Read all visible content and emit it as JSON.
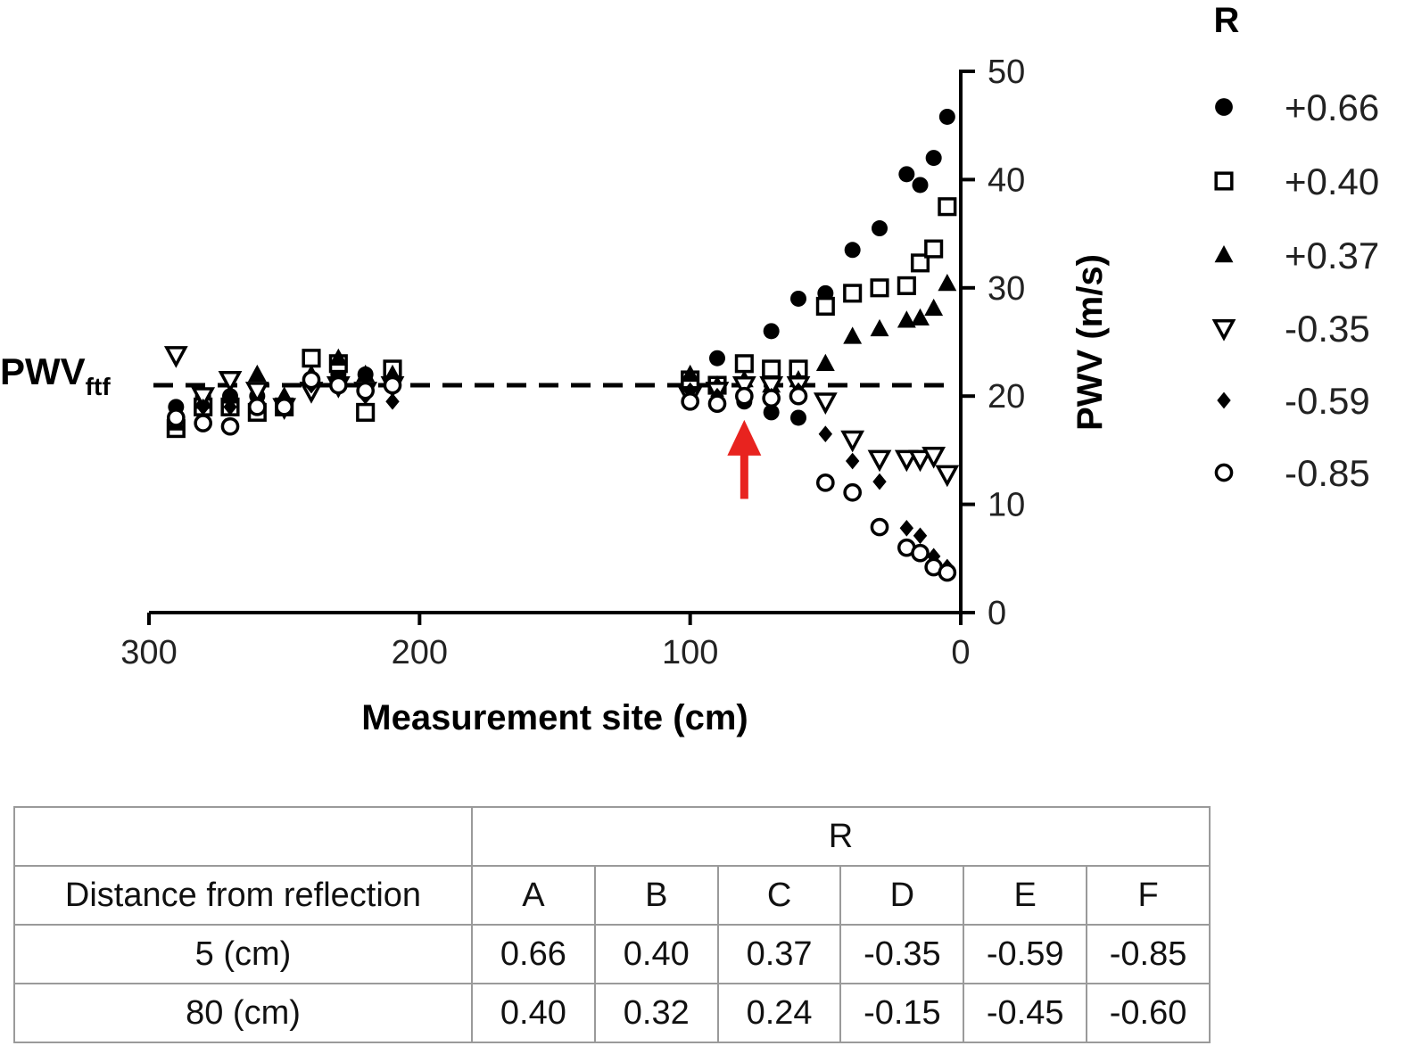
{
  "chart_data": {
    "type": "scatter",
    "xlabel": "Measurement site (cm)",
    "ylabel": "PWV (m/s)",
    "x_reversed": true,
    "xlim": [
      300,
      0
    ],
    "ylim": [
      0,
      50
    ],
    "x_ticks": [
      "300",
      "200",
      "100",
      "0"
    ],
    "y_ticks": [
      "0",
      "10",
      "20",
      "30",
      "40",
      "50"
    ],
    "y_axis_position": "right",
    "grid": false,
    "legend_title": "R",
    "legend_position": "right",
    "reference_line": {
      "label_main": "PWV",
      "label_sub": "ftf",
      "y": 21,
      "style": "dashed"
    },
    "annotation": {
      "type": "arrow",
      "color": "#e8231f",
      "x": 80,
      "y_from": 10.5,
      "y_to": 17.8
    },
    "series": [
      {
        "name": "+0.66",
        "marker": "filled-circle",
        "points": [
          [
            290,
            19
          ],
          [
            280,
            20
          ],
          [
            270,
            20
          ],
          [
            260,
            20
          ],
          [
            250,
            19
          ],
          [
            240,
            21
          ],
          [
            230,
            22
          ],
          [
            220,
            22
          ],
          [
            210,
            22
          ],
          [
            100,
            21
          ],
          [
            90,
            23.5
          ],
          [
            80,
            19.5
          ],
          [
            70,
            18.5
          ],
          [
            60,
            18
          ],
          [
            70,
            26
          ],
          [
            60,
            29
          ],
          [
            50,
            29.5
          ],
          [
            40,
            33.5
          ],
          [
            30,
            35.5
          ],
          [
            20,
            40.5
          ],
          [
            15,
            39.5
          ],
          [
            10,
            42
          ],
          [
            5,
            45.8
          ]
        ]
      },
      {
        "name": "+0.40",
        "marker": "open-square",
        "points": [
          [
            290,
            17
          ],
          [
            280,
            19
          ],
          [
            270,
            19
          ],
          [
            260,
            18.5
          ],
          [
            250,
            19
          ],
          [
            240,
            23.5
          ],
          [
            230,
            23
          ],
          [
            220,
            18.5
          ],
          [
            210,
            22.5
          ],
          [
            100,
            21.5
          ],
          [
            90,
            21
          ],
          [
            80,
            23
          ],
          [
            70,
            22.5
          ],
          [
            60,
            22.5
          ],
          [
            50,
            28.3
          ],
          [
            40,
            29.5
          ],
          [
            30,
            30
          ],
          [
            20,
            30.2
          ],
          [
            15,
            32.3
          ],
          [
            10,
            33.6
          ],
          [
            5,
            37.5
          ]
        ]
      },
      {
        "name": "+0.37",
        "marker": "filled-triangle",
        "points": [
          [
            290,
            17.5
          ],
          [
            280,
            19.5
          ],
          [
            270,
            20
          ],
          [
            260,
            22
          ],
          [
            250,
            20
          ],
          [
            240,
            22
          ],
          [
            230,
            23.5
          ],
          [
            220,
            22
          ],
          [
            210,
            22
          ],
          [
            100,
            22
          ],
          [
            90,
            21
          ],
          [
            80,
            21.5
          ],
          [
            70,
            21
          ],
          [
            60,
            21.5
          ],
          [
            50,
            23
          ],
          [
            40,
            25.5
          ],
          [
            30,
            26.2
          ],
          [
            20,
            27
          ],
          [
            15,
            27.2
          ],
          [
            10,
            28.1
          ],
          [
            5,
            30.4
          ]
        ]
      },
      {
        "name": "-0.35",
        "marker": "open-triangle-down",
        "points": [
          [
            290,
            23.8
          ],
          [
            280,
            20
          ],
          [
            270,
            21.5
          ],
          [
            260,
            20.5
          ],
          [
            250,
            19
          ],
          [
            240,
            20.5
          ],
          [
            230,
            21
          ],
          [
            220,
            20.5
          ],
          [
            210,
            21
          ],
          [
            100,
            20
          ],
          [
            90,
            20.5
          ],
          [
            80,
            21
          ],
          [
            70,
            21
          ],
          [
            60,
            21
          ],
          [
            50,
            19.5
          ],
          [
            40,
            16
          ],
          [
            30,
            14.2
          ],
          [
            20,
            14.2
          ],
          [
            15,
            14.2
          ],
          [
            10,
            14.5
          ],
          [
            5,
            12.8
          ]
        ]
      },
      {
        "name": "-0.59",
        "marker": "filled-diamond",
        "points": [
          [
            290,
            18.5
          ],
          [
            280,
            19
          ],
          [
            270,
            19
          ],
          [
            260,
            19
          ],
          [
            250,
            19
          ],
          [
            240,
            21
          ],
          [
            230,
            21
          ],
          [
            220,
            20
          ],
          [
            210,
            19.5
          ],
          [
            100,
            20.5
          ],
          [
            90,
            20
          ],
          [
            80,
            20
          ],
          [
            70,
            20
          ],
          [
            60,
            20.5
          ],
          [
            50,
            16.5
          ],
          [
            40,
            14
          ],
          [
            30,
            12.1
          ],
          [
            20,
            7.8
          ],
          [
            15,
            7.1
          ],
          [
            10,
            5.2
          ],
          [
            5,
            4.2
          ]
        ]
      },
      {
        "name": "-0.85",
        "marker": "open-circle",
        "points": [
          [
            290,
            18
          ],
          [
            280,
            17.5
          ],
          [
            270,
            17.2
          ],
          [
            260,
            19
          ],
          [
            250,
            19
          ],
          [
            240,
            21.5
          ],
          [
            230,
            21
          ],
          [
            220,
            20.5
          ],
          [
            210,
            21
          ],
          [
            100,
            19.5
          ],
          [
            90,
            19.3
          ],
          [
            80,
            20
          ],
          [
            70,
            19.8
          ],
          [
            60,
            20
          ],
          [
            50,
            12
          ],
          [
            40,
            11.1
          ],
          [
            30,
            7.9
          ],
          [
            20,
            6
          ],
          [
            15,
            5.5
          ],
          [
            10,
            4.2
          ],
          [
            5,
            3.7
          ]
        ]
      }
    ]
  },
  "table": {
    "header_r": "R",
    "row_header_label": "Distance from reflection",
    "columns": [
      "A",
      "B",
      "C",
      "D",
      "E",
      "F"
    ],
    "rows": [
      {
        "label": "5 (cm)",
        "values": [
          "0.66",
          "0.40",
          "0.37",
          "-0.35",
          "-0.59",
          "-0.85"
        ]
      },
      {
        "label": "80 (cm)",
        "values": [
          "0.40",
          "0.32",
          "0.24",
          "-0.15",
          "-0.45",
          "-0.60"
        ]
      }
    ]
  }
}
